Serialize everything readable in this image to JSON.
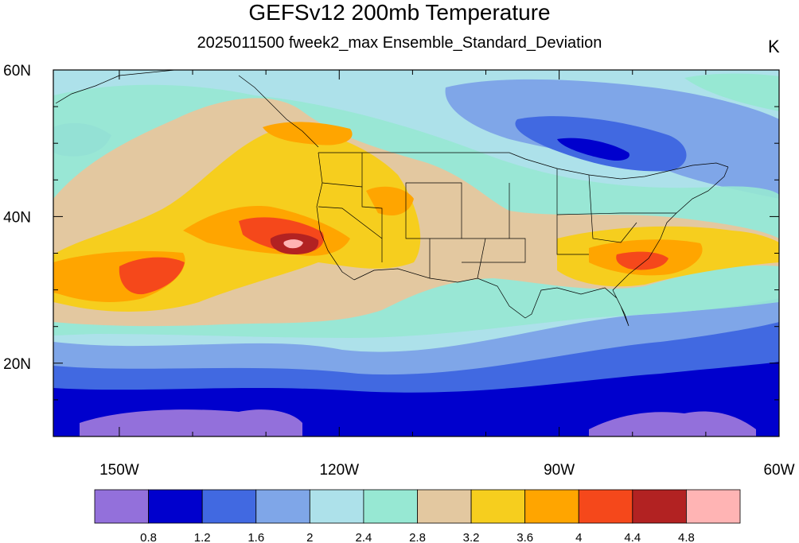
{
  "title": "GEFSv12 200mb Temperature",
  "subtitle": "2025011500 fweek2_max Ensemble_Standard_Deviation",
  "units": "K",
  "axes": {
    "lat_labels": [
      "60N",
      "40N",
      "20N"
    ],
    "lon_labels": [
      "150W",
      "120W",
      "90W",
      "60W"
    ]
  },
  "map_extent": {
    "lon_min": -159,
    "lon_max": -60,
    "lat_min": 10,
    "lat_max": 60
  },
  "colorbar": {
    "colors": [
      "#9370DB",
      "#0000CD",
      "#4169E1",
      "#7FA6E8",
      "#ADE1EA",
      "#97E8D3",
      "#E3C8A0",
      "#F6CE1E",
      "#FFA500",
      "#F5481B",
      "#B22222",
      "#FFB4B4"
    ],
    "labels": [
      "0.8",
      "1.2",
      "1.6",
      "2",
      "2.4",
      "2.8",
      "3.2",
      "3.6",
      "4",
      "4.4",
      "4.8"
    ]
  }
}
